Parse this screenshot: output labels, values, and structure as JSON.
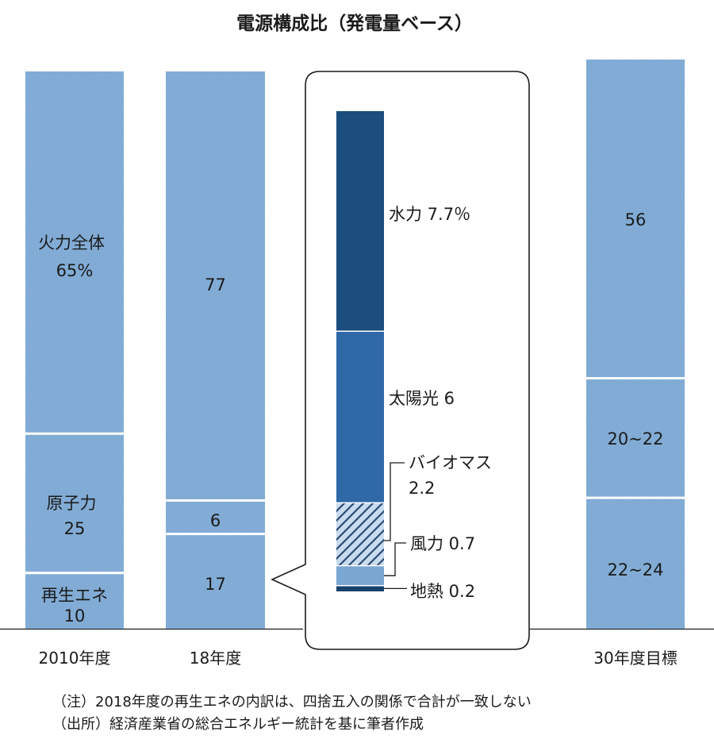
{
  "title": "電源構成比（発電量ベース）",
  "chart_data": {
    "type": "bar",
    "stacked": true,
    "unit": "%",
    "categories": [
      "2010年度",
      "18年度",
      "30年度目標"
    ],
    "bars": [
      {
        "category": "2010年度",
        "segments": [
          {
            "name": "再生エネ",
            "value": 10,
            "label_lines": [
              "再生エネ",
              "10"
            ]
          },
          {
            "name": "原子力",
            "value": 25,
            "label_lines": [
              "原子力",
              "25"
            ]
          },
          {
            "name": "火力全体",
            "value": 65,
            "label_lines": [
              "火力全体",
              "65%"
            ]
          }
        ]
      },
      {
        "category": "18年度",
        "segments": [
          {
            "name": "再生エネ",
            "value": 17,
            "label_lines": [
              "17"
            ]
          },
          {
            "name": "原子力",
            "value": 6,
            "label_lines": [
              "6"
            ]
          },
          {
            "name": "火力全体",
            "value": 77,
            "label_lines": [
              "77"
            ]
          }
        ]
      },
      {
        "category": "30年度目標",
        "segments": [
          {
            "name": "再生エネ",
            "value": 23,
            "range": [
              22,
              24
            ],
            "label_lines": [
              "22~24"
            ]
          },
          {
            "name": "原子力",
            "value": 21,
            "range": [
              20,
              22
            ],
            "label_lines": [
              "20~22"
            ]
          },
          {
            "name": "火力全体",
            "value": 56,
            "label_lines": [
              "56"
            ]
          }
        ]
      }
    ],
    "breakdown": {
      "of": "18年度 再生エネ",
      "segments": [
        {
          "name": "地熱",
          "value": 0.2,
          "label": "地熱 0.2",
          "color": "#17406a",
          "pattern": "solid"
        },
        {
          "name": "風力",
          "value": 0.7,
          "label": "風力 0.7",
          "color": "#7aa6d2",
          "pattern": "solid"
        },
        {
          "name": "バイオマス",
          "value": 2.2,
          "label": [
            "バイオマス",
            "2.2"
          ],
          "color": "#2a4a73",
          "pattern": "hatch"
        },
        {
          "name": "太陽光",
          "value": 6,
          "label": "太陽光 6",
          "color": "#2f69a8",
          "pattern": "solid"
        },
        {
          "name": "水力",
          "value": 7.7,
          "label": "水力 7.7％",
          "color": "#1b4d7e",
          "pattern": "solid"
        }
      ]
    },
    "colors": {
      "bar": "#85afd8",
      "divider": "#ffffff",
      "frame": "#1a1a1a"
    }
  },
  "notes": [
    "（注）2018年度の再生エネの内訳は、四捨五入の関係で合計が一致しない",
    "（出所）経済産業省の総合エネルギー統計を基に筆者作成"
  ]
}
